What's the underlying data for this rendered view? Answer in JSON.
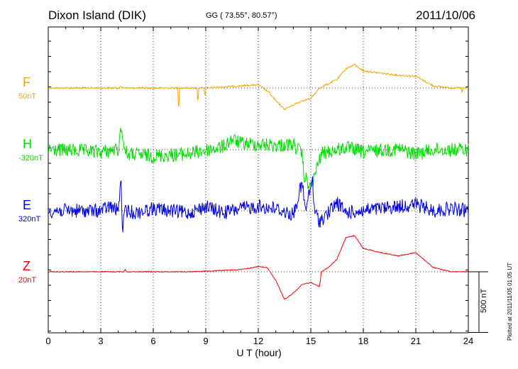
{
  "header": {
    "station": "Dixon Island (DIK)",
    "coords": "GG ( 73.55°,  80.57°)",
    "date": "2011/10/06"
  },
  "plotted_note": "Plotted at 2011/11/05 01:05 UT",
  "scale_bar_label": "500 nT",
  "chart_data": {
    "type": "line",
    "xlabel": "U T (hour)",
    "xlim": [
      0,
      24
    ],
    "xticks": [
      "0",
      "3",
      "6",
      "9",
      "12",
      "15",
      "18",
      "21",
      "24"
    ],
    "grid": true,
    "scale_bar_nT": 500,
    "series": [
      {
        "name": "F",
        "base": "50nT",
        "color": "#f0a800",
        "noise": 1.2,
        "points": [
          [
            0,
            0
          ],
          [
            4,
            0
          ],
          [
            4.2,
            -5
          ],
          [
            4.4,
            0
          ],
          [
            7.4,
            0
          ],
          [
            7.45,
            120
          ],
          [
            7.5,
            0
          ],
          [
            8.5,
            0
          ],
          [
            8.55,
            80
          ],
          [
            8.6,
            0
          ],
          [
            8.9,
            0
          ],
          [
            8.95,
            50
          ],
          [
            9,
            0
          ],
          [
            11,
            -10
          ],
          [
            12,
            -15
          ],
          [
            12.6,
            20
          ],
          [
            13,
            60
          ],
          [
            13.5,
            100
          ],
          [
            14,
            80
          ],
          [
            14.5,
            60
          ],
          [
            15,
            50
          ],
          [
            15.5,
            0
          ],
          [
            16,
            -20
          ],
          [
            16.5,
            -40
          ],
          [
            17,
            -90
          ],
          [
            17.5,
            -110
          ],
          [
            18,
            -80
          ],
          [
            19,
            -70
          ],
          [
            20,
            -60
          ],
          [
            21,
            -55
          ],
          [
            22,
            -10
          ],
          [
            23,
            0
          ],
          [
            23.6,
            0
          ],
          [
            23.65,
            25
          ],
          [
            23.7,
            0
          ],
          [
            24,
            0
          ]
        ]
      },
      {
        "name": "H",
        "base": "-320nT",
        "color": "#00dd00",
        "noise": 10,
        "points": [
          [
            0,
            0
          ],
          [
            3,
            10
          ],
          [
            4,
            0
          ],
          [
            4.2,
            -120
          ],
          [
            4.3,
            -20
          ],
          [
            4.5,
            20
          ],
          [
            6,
            30
          ],
          [
            8,
            20
          ],
          [
            10,
            -15
          ],
          [
            10.5,
            -50
          ],
          [
            11,
            -30
          ],
          [
            12,
            -25
          ],
          [
            13,
            -20
          ],
          [
            14,
            -25
          ],
          [
            14.5,
            20
          ],
          [
            14.6,
            120
          ],
          [
            15,
            180
          ],
          [
            15.3,
            100
          ],
          [
            15.6,
            20
          ],
          [
            16,
            10
          ],
          [
            17,
            -10
          ],
          [
            18,
            10
          ],
          [
            20,
            -5
          ],
          [
            21,
            20
          ],
          [
            22,
            0
          ],
          [
            24,
            0
          ]
        ]
      },
      {
        "name": "E",
        "base": "320nT",
        "color": "#0000dd",
        "noise": 10,
        "points": [
          [
            0,
            0
          ],
          [
            3,
            0
          ],
          [
            3.5,
            -20
          ],
          [
            4,
            0
          ],
          [
            4.15,
            -160
          ],
          [
            4.2,
            0
          ],
          [
            4.25,
            80
          ],
          [
            4.4,
            0
          ],
          [
            5,
            10
          ],
          [
            6,
            -10
          ],
          [
            7,
            0
          ],
          [
            8,
            10
          ],
          [
            9,
            -20
          ],
          [
            10,
            10
          ],
          [
            11,
            -10
          ],
          [
            12,
            -20
          ],
          [
            13,
            -10
          ],
          [
            14,
            20
          ],
          [
            14.5,
            -130
          ],
          [
            14.7,
            0
          ],
          [
            15.1,
            -150
          ],
          [
            15.2,
            0
          ],
          [
            15.5,
            50
          ],
          [
            16,
            10
          ],
          [
            16.5,
            -40
          ],
          [
            17,
            10
          ],
          [
            18,
            0
          ],
          [
            19,
            -10
          ],
          [
            20,
            -20
          ],
          [
            21,
            -30
          ],
          [
            22,
            0
          ],
          [
            23,
            -10
          ],
          [
            24,
            0
          ]
        ]
      },
      {
        "name": "Z",
        "base": "20nT",
        "color": "#ee0000",
        "noise": 0.6,
        "points": [
          [
            0,
            0
          ],
          [
            4.3,
            0
          ],
          [
            4.4,
            -10
          ],
          [
            4.5,
            0
          ],
          [
            8,
            0
          ],
          [
            11,
            -10
          ],
          [
            12,
            -25
          ],
          [
            12.5,
            -20
          ],
          [
            13,
            40
          ],
          [
            13.5,
            130
          ],
          [
            14,
            100
          ],
          [
            14.5,
            60
          ],
          [
            15,
            50
          ],
          [
            15.5,
            70
          ],
          [
            15.6,
            0
          ],
          [
            16,
            -20
          ],
          [
            16.5,
            -60
          ],
          [
            17,
            -160
          ],
          [
            17.5,
            -170
          ],
          [
            18,
            -110
          ],
          [
            19,
            -90
          ],
          [
            20,
            -75
          ],
          [
            21,
            -90
          ],
          [
            22,
            -20
          ],
          [
            23,
            0
          ],
          [
            24,
            0
          ]
        ]
      }
    ]
  }
}
